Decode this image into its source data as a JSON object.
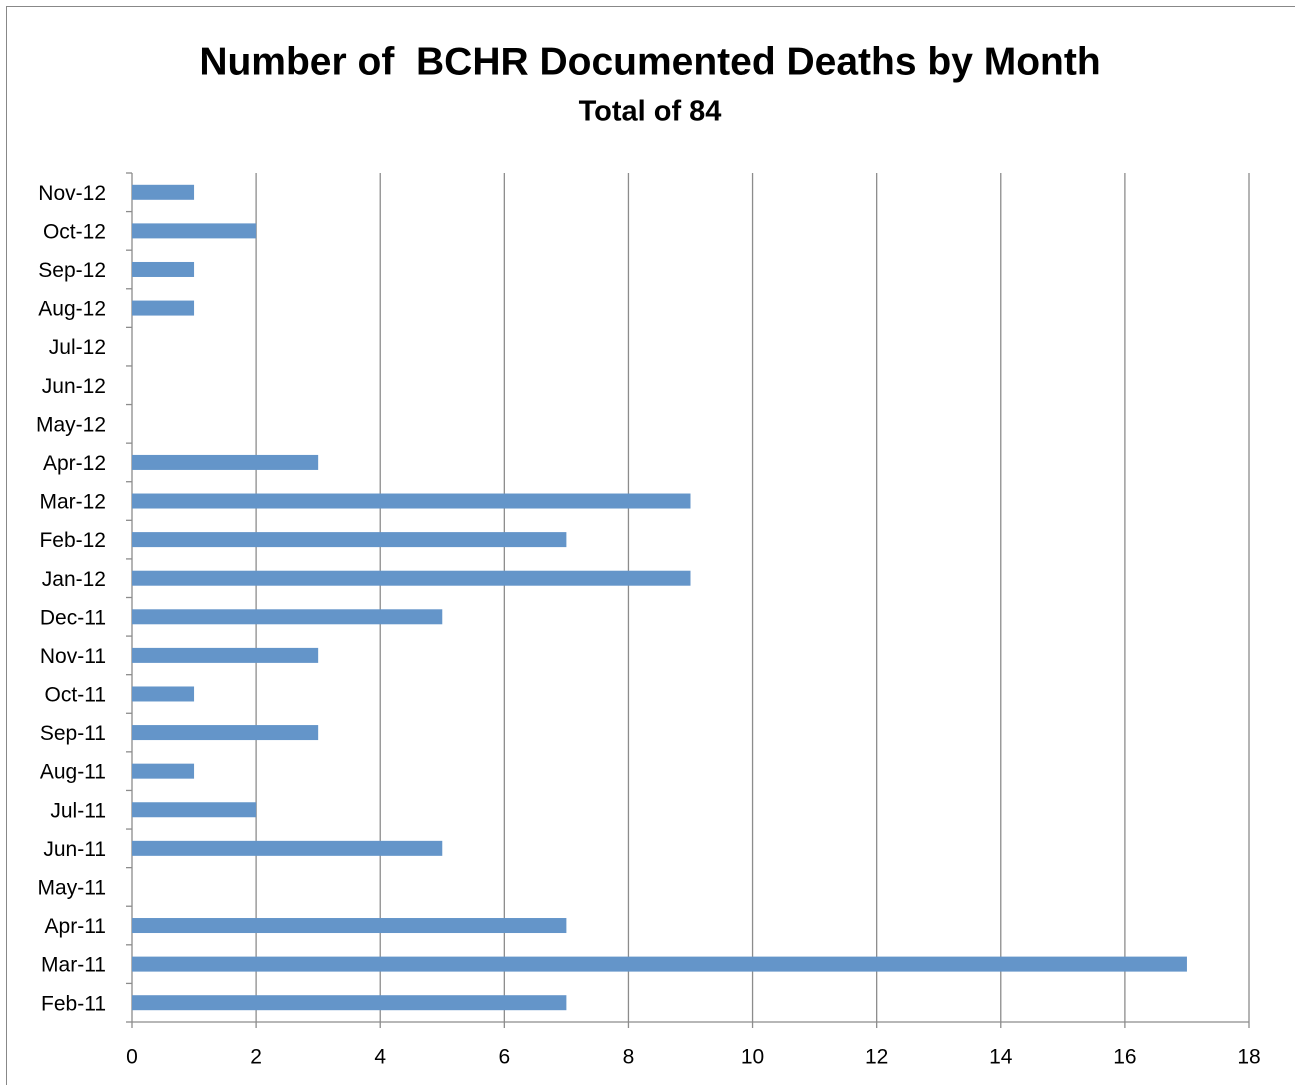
{
  "chart_data": {
    "type": "bar",
    "orientation": "horizontal",
    "title": "Number of  BCHR Documented Deaths by Month",
    "subtitle": "Total of 84",
    "categories": [
      "Feb-11",
      "Mar-11",
      "Apr-11",
      "May-11",
      "Jun-11",
      "Jul-11",
      "Aug-11",
      "Sep-11",
      "Oct-11",
      "Nov-11",
      "Dec-11",
      "Jan-12",
      "Feb-12",
      "Mar-12",
      "Apr-12",
      "May-12",
      "Jun-12",
      "Jul-12",
      "Aug-12",
      "Sep-12",
      "Oct-12",
      "Nov-12"
    ],
    "values": [
      7,
      17,
      7,
      0,
      5,
      2,
      1,
      3,
      1,
      3,
      5,
      9,
      7,
      9,
      3,
      0,
      0,
      0,
      1,
      1,
      2,
      1
    ],
    "color": "#6495c9",
    "xlim": [
      0,
      18
    ],
    "xticks": [
      0,
      2,
      4,
      6,
      8,
      10,
      12,
      14,
      16,
      18
    ],
    "grid": true
  }
}
